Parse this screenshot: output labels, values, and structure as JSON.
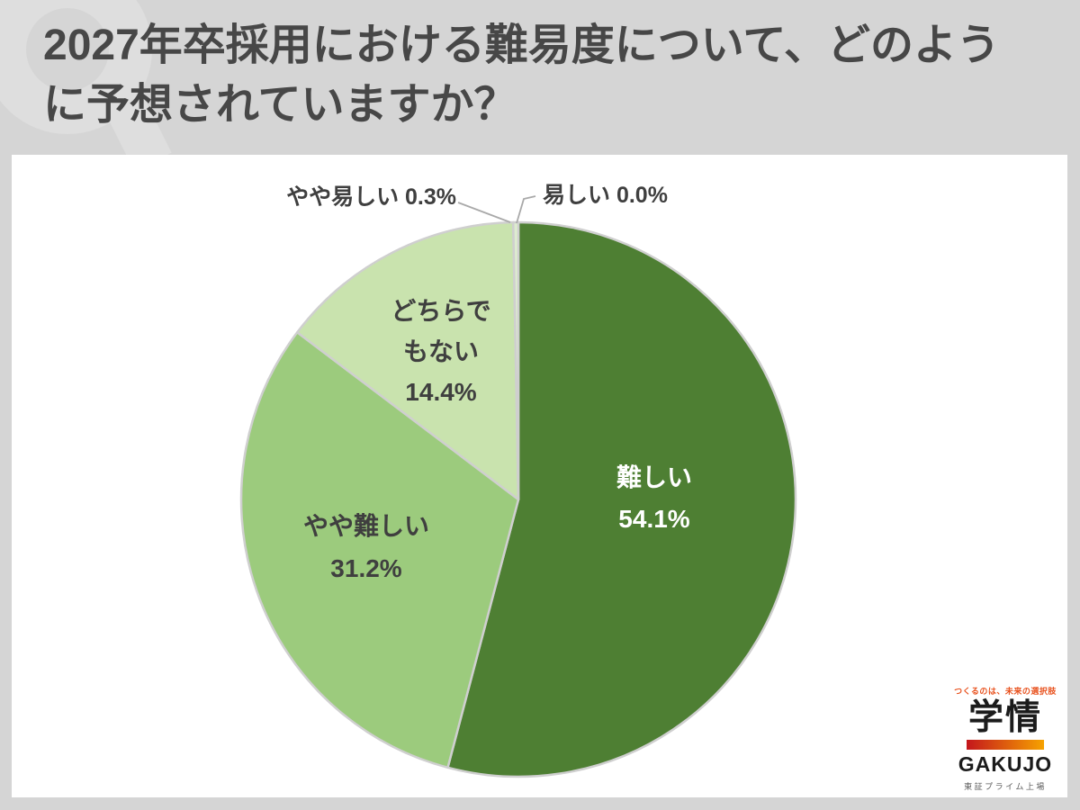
{
  "header": {
    "title_line1": "2027年卒採用における難易度について、どのよう",
    "title_line2": "に予想されていますか？"
  },
  "chart_data": {
    "type": "pie",
    "title": "2027年卒採用における難易度について、どのように予想されていますか？",
    "unit": "percent",
    "direction": "clockwise",
    "start_angle_deg": 0,
    "border_color": "#cfcfcf",
    "segments": [
      {
        "label": "難しい",
        "value": 54.1,
        "pct_text": "54.1%",
        "color": "#4e7f33",
        "label_position": "inside"
      },
      {
        "label": "やや難しい",
        "value": 31.2,
        "pct_text": "31.2%",
        "color": "#9ccb7d",
        "label_position": "inside"
      },
      {
        "label": "どちらでもない",
        "value": 14.4,
        "pct_text": "14.4%",
        "color": "#c9e3ae",
        "label_lines": [
          "どちらで",
          "もない"
        ],
        "label_position": "inside"
      },
      {
        "label": "やや易しい",
        "value": 0.3,
        "pct_text": "0.3%",
        "color": "#ddeccf",
        "callout": "やや易しい 0.3%",
        "label_position": "callout"
      },
      {
        "label": "易しい",
        "value": 0.0,
        "pct_text": "0.0%",
        "color": "#e9f3df",
        "callout": "易しい 0.0%",
        "label_position": "callout"
      }
    ]
  },
  "logo": {
    "tagline": "つくるのは、未来の選択肢",
    "tagline_color": "#e8511d",
    "name_kanji": "学情",
    "name_roman": "GAKUJO",
    "subtext": "東証プライム上場",
    "bar_gradient_from": "#c4161c",
    "bar_gradient_to": "#f6a200"
  }
}
